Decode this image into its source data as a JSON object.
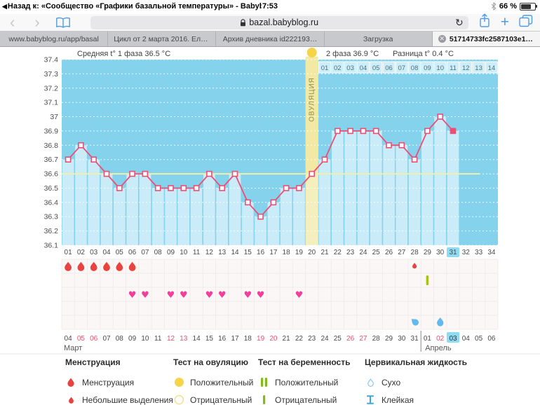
{
  "status_bar": {
    "back_label": "Назад к: «Сообщество «Графики базальной температуры» - Babyblog.…",
    "back_arrow": "◀",
    "time": "7:53",
    "battery_percent": "66 %"
  },
  "toolbar": {
    "url": "bazal.babyblog.ru",
    "reload_icon": "↻",
    "back_icon": "‹",
    "forward_icon": "›",
    "plus_label": "+"
  },
  "tabs": [
    {
      "label": "www.babyblog.ru/app/basal",
      "active": false
    },
    {
      "label": "Цикл от 2 марта 2016. Еле у…",
      "active": false
    },
    {
      "label": "Архив дневника id222193…",
      "active": false
    },
    {
      "label": "Загрузка",
      "active": false
    },
    {
      "label": "51714733fc2587103e153…",
      "active": true,
      "close_icon": "✕"
    }
  ],
  "chart_data": {
    "type": "line",
    "stats": {
      "phase1_avg": "Средняя t° 1 фаза 36.5 °C",
      "phase2_avg": "2 фаза 36.9 °C",
      "difference": "Разница t° 0.4 °C"
    },
    "ylim": [
      36.1,
      37.4
    ],
    "ytick_step": 0.1,
    "days": 34,
    "temperatures": [
      36.7,
      36.8,
      36.7,
      36.6,
      36.5,
      36.6,
      36.6,
      36.5,
      36.5,
      36.5,
      36.5,
      36.6,
      36.5,
      36.6,
      36.4,
      36.3,
      36.4,
      36.5,
      36.5,
      36.6,
      36.7,
      36.9,
      36.9,
      36.9,
      36.9,
      36.8,
      36.8,
      36.7,
      36.9,
      37.0,
      36.9,
      null,
      null,
      null
    ],
    "coverline": 36.6,
    "ovulation": {
      "day": 20,
      "label": "ОВУЛЯЦИЯ"
    },
    "current_cycle_day": 31,
    "phase2_days": {
      "start_day": 21,
      "labels": [
        "01",
        "02",
        "03",
        "04",
        "05",
        "06",
        "07",
        "08",
        "09",
        "10",
        "11",
        "12",
        "13",
        "14"
      ]
    },
    "markers": {
      "moon_day": 10,
      "menstruation_days": [
        1,
        2,
        3,
        4,
        5,
        6
      ],
      "spotting_days": [
        28
      ],
      "pregnancy_test_negative_days": [
        29
      ],
      "intercourse_days": [
        6,
        7,
        9,
        10,
        12,
        13,
        15,
        16,
        19
      ],
      "fluid_sticky_days": [
        28
      ],
      "fluid_drop_days": [
        30
      ]
    },
    "calendar": {
      "months": [
        {
          "name": "Март",
          "start_cycle_day": 1,
          "dates": [
            "04",
            "05",
            "06",
            "07",
            "08",
            "09",
            "10",
            "11",
            "12",
            "13",
            "14",
            "15",
            "16",
            "17",
            "18",
            "19",
            "20",
            "21",
            "22",
            "23",
            "24",
            "25",
            "26",
            "27",
            "28",
            "29",
            "30",
            "31"
          ],
          "weekend_dates": [
            "05",
            "06",
            "12",
            "13",
            "19",
            "20",
            "26",
            "27"
          ]
        },
        {
          "name": "Апрель",
          "start_cycle_day": 29,
          "dates": [
            "01",
            "02",
            "03",
            "04",
            "05",
            "06"
          ],
          "weekend_dates": [
            "02",
            "03"
          ]
        }
      ],
      "today": {
        "month": "Апрель",
        "date": "03"
      }
    },
    "colors": {
      "plot_bg": "#85d2ec",
      "area_fill": "#c9ecf8",
      "ovulation_column": "#f1e9a4",
      "ovulation_area": "#f5efbd",
      "line": "#ee4d74",
      "coverline": "#eef0ae",
      "heart": "#f23f9b",
      "menses": "#e8433f",
      "pregnancy_bar": "#a5c319",
      "fluid": "#63b9ec",
      "highlight": "#8edbf4",
      "weekend_text": "#e8506e"
    }
  },
  "legend": {
    "columns": [
      {
        "title": "Менструация",
        "items": [
          {
            "icon": "menstruation-drop-icon",
            "label": "Менструация"
          },
          {
            "icon": "spotting-drop-icon",
            "label": "Небольшие выделения"
          }
        ]
      },
      {
        "title": "Тест на овуляцию",
        "items": [
          {
            "icon": "ovulation-positive-icon",
            "label": "Положительный"
          },
          {
            "icon": "ovulation-negative-icon",
            "label": "Отрицательный"
          }
        ]
      },
      {
        "title": "Тест на беременность",
        "items": [
          {
            "icon": "pregnancy-positive-icon",
            "label": "Положительный"
          },
          {
            "icon": "pregnancy-negative-icon",
            "label": "Отрицательный"
          }
        ]
      },
      {
        "title": "Цервикальная жидкость",
        "items": [
          {
            "icon": "fluid-dry-icon",
            "label": "Сухо"
          },
          {
            "icon": "fluid-sticky-icon",
            "label": "Клейкая"
          }
        ]
      }
    ]
  }
}
